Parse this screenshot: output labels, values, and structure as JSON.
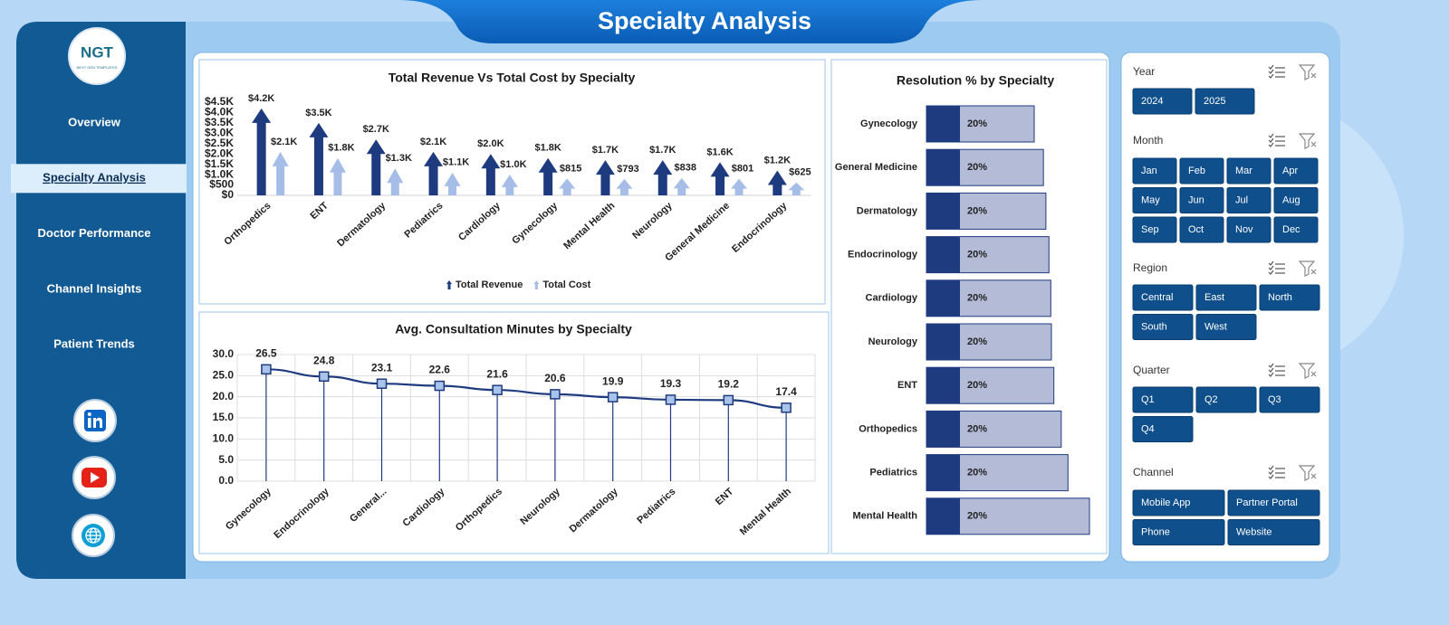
{
  "header": {
    "title": "Specialty Analysis"
  },
  "logo": {
    "text": "NGT",
    "tagline": "NEXT GEN TEMPLATES"
  },
  "nav": [
    "Overview",
    "Specialty Analysis",
    "Doctor Performance",
    "Channel Insights",
    "Patient Trends"
  ],
  "active_nav": 1,
  "chart_data": [
    {
      "type": "bar",
      "title": "Total Revenue Vs Total Cost by Specialty",
      "categories": [
        "Orthopedics",
        "ENT",
        "Dermatology",
        "Pediatrics",
        "Cardiology",
        "Gynecology",
        "Mental Health",
        "Neurology",
        "General Medicine",
        "Endocrinology"
      ],
      "series": [
        {
          "name": "Total Revenue",
          "color": "#1f3b7f",
          "values": [
            4200,
            3500,
            2700,
            2100,
            2000,
            1800,
            1700,
            1700,
            1600,
            1200
          ],
          "value_labels": [
            "$4.2K",
            "$3.5K",
            "$2.7K",
            "$2.1K",
            "$2.0K",
            "$1.8K",
            "$1.7K",
            "$1.7K",
            "$1.6K",
            "$1.2K"
          ]
        },
        {
          "name": "Total Cost",
          "color": "#a6bde8",
          "values": [
            2100,
            1800,
            1300,
            1100,
            1000,
            815,
            793,
            838,
            801,
            625
          ],
          "value_labels": [
            "$2.1K",
            "$1.8K",
            "$1.3K",
            "$1.1K",
            "$1.0K",
            "$815",
            "$793",
            "$838",
            "$801",
            "$625"
          ]
        }
      ],
      "ylim": [
        0,
        4500
      ],
      "yticks": [
        {
          "value": 0,
          "label": "$0"
        },
        {
          "value": 500,
          "label": "$500"
        },
        {
          "value": 1000,
          "label": "$1.0K"
        },
        {
          "value": 1500,
          "label": "$1.5K"
        },
        {
          "value": 2000,
          "label": "$2.0K"
        },
        {
          "value": 2500,
          "label": "$2.5K"
        },
        {
          "value": 3000,
          "label": "$3.0K"
        },
        {
          "value": 3500,
          "label": "$3.5K"
        },
        {
          "value": 4000,
          "label": "$4.0K"
        },
        {
          "value": 4500,
          "label": "$4.5K"
        }
      ],
      "legend": "bottom",
      "grid": false
    },
    {
      "type": "line",
      "title": "Avg. Consultation Minutes by Specialty",
      "categories": [
        "Gynecology",
        "Endocrinology",
        "General...",
        "Cardiology",
        "Orthopedics",
        "Neurology",
        "Dermatology",
        "Pediatrics",
        "ENT",
        "Mental Health"
      ],
      "values": [
        26.5,
        24.8,
        23.1,
        22.6,
        21.6,
        20.6,
        19.9,
        19.3,
        19.2,
        17.4
      ],
      "color": "#1f3b7f",
      "marker_color": "#a9c4ea",
      "ylim": [
        0,
        30
      ],
      "yticks": [
        {
          "value": 0,
          "label": "0.0"
        },
        {
          "value": 5,
          "label": "5.0"
        },
        {
          "value": 10,
          "label": "10.0"
        },
        {
          "value": 15,
          "label": "15.0"
        },
        {
          "value": 20,
          "label": "20.0"
        },
        {
          "value": 25,
          "label": "25.0"
        },
        {
          "value": 30,
          "label": "30.0"
        }
      ],
      "grid": true
    },
    {
      "type": "bar",
      "horizontal": true,
      "title": "Resolution % by Specialty",
      "categories": [
        "Gynecology",
        "General Medicine",
        "Dermatology",
        "Endocrinology",
        "Cardiology",
        "Neurology",
        "ENT",
        "Orthopedics",
        "Pediatrics",
        "Mental Health"
      ],
      "values": [
        19.5,
        19.65,
        19.69,
        19.74,
        19.77,
        19.78,
        19.82,
        19.94,
        20.05,
        20.4
      ],
      "value_labels": [
        "20%",
        "20%",
        "20%",
        "20%",
        "20%",
        "20%",
        "20%",
        "20%",
        "20%",
        "20%"
      ],
      "color": "#b3bbd6",
      "cap_color": "#1f3b7f"
    }
  ],
  "slicers": [
    {
      "title": "Year",
      "items": [
        "2024",
        "2025"
      ]
    },
    {
      "title": "Month",
      "items": [
        "Jan",
        "Feb",
        "Mar",
        "Apr",
        "May",
        "Jun",
        "Jul",
        "Aug",
        "Sep",
        "Oct",
        "Nov",
        "Dec"
      ]
    },
    {
      "title": "Region",
      "items": [
        "Central",
        "East",
        "North",
        "South",
        "West"
      ]
    },
    {
      "title": "Quarter",
      "items": [
        "Q1",
        "Q2",
        "Q3",
        "Q4"
      ]
    },
    {
      "title": "Channel",
      "items": [
        "Mobile App",
        "Partner Portal",
        "Phone",
        "Website"
      ]
    }
  ]
}
